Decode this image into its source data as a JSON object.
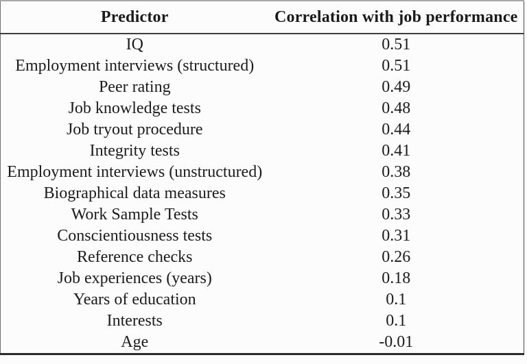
{
  "table": {
    "headers": [
      "Predictor",
      "Correlation with job performance"
    ],
    "rows": [
      {
        "predictor": "IQ",
        "correlation": "0.51"
      },
      {
        "predictor": "Employment interviews (structured)",
        "correlation": "0.51"
      },
      {
        "predictor": "Peer rating",
        "correlation": "0.49"
      },
      {
        "predictor": "Job knowledge tests",
        "correlation": "0.48"
      },
      {
        "predictor": "Job tryout procedure",
        "correlation": "0.44"
      },
      {
        "predictor": "Integrity tests",
        "correlation": "0.41"
      },
      {
        "predictor": "Employment interviews (unstructured)",
        "correlation": "0.38"
      },
      {
        "predictor": "Biographical data measures",
        "correlation": "0.35"
      },
      {
        "predictor": "Work Sample Tests",
        "correlation": "0.33"
      },
      {
        "predictor": "Conscientiousness tests",
        "correlation": "0.31"
      },
      {
        "predictor": "Reference checks",
        "correlation": "0.26"
      },
      {
        "predictor": "Job experiences (years)",
        "correlation": "0.18"
      },
      {
        "predictor": "Years of education",
        "correlation": "0.1"
      },
      {
        "predictor": "Interests",
        "correlation": "0.1"
      },
      {
        "predictor": "Age",
        "correlation": "-0.01"
      }
    ]
  },
  "colors": {
    "text": "#1b1b1b",
    "background": "#fdfcfd",
    "outer_border": "#6e6e6e",
    "top_border": "#a8a8a8",
    "header_divider": "#3c3c3c",
    "bottom_border": "#2b2b2b"
  }
}
